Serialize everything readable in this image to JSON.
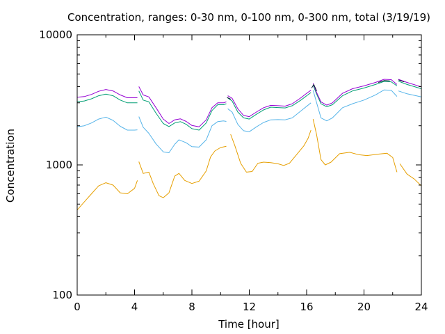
{
  "chart_data": {
    "type": "line",
    "title": "Concentration, ranges: 0-30 nm, 0-100 nm, 0-300 nm, total (3/19/19)",
    "xlabel": "Time [hour]",
    "ylabel": "Concentration",
    "xlim": [
      0,
      24
    ],
    "ylim": [
      100,
      10000
    ],
    "yscale": "log",
    "x_ticks": [
      0,
      4,
      8,
      12,
      16,
      20,
      24
    ],
    "x_tick_labels": [
      "0",
      "4",
      "8",
      "12",
      "16",
      "20",
      "24"
    ],
    "y_ticks": [
      100,
      1000,
      10000
    ],
    "y_tick_labels": [
      "100",
      "1000",
      "10000"
    ],
    "grid": false,
    "legend": "none",
    "series": [
      {
        "color": "#e69f00",
        "segments": [
          [
            [
              0.0,
              450
            ],
            [
              0.5,
              520
            ],
            [
              1.0,
              600
            ],
            [
              1.5,
              690
            ],
            [
              2.0,
              730
            ],
            [
              2.5,
              700
            ],
            [
              3.0,
              610
            ],
            [
              3.5,
              600
            ],
            [
              4.0,
              660
            ],
            [
              4.2,
              760
            ]
          ],
          [
            [
              4.3,
              1060
            ],
            [
              4.6,
              860
            ],
            [
              5.0,
              880
            ],
            [
              5.3,
              720
            ],
            [
              5.7,
              580
            ],
            [
              6.0,
              560
            ],
            [
              6.4,
              610
            ],
            [
              6.8,
              820
            ],
            [
              7.1,
              860
            ],
            [
              7.5,
              760
            ],
            [
              8.0,
              720
            ],
            [
              8.5,
              750
            ],
            [
              9.0,
              900
            ],
            [
              9.3,
              1150
            ],
            [
              9.6,
              1280
            ],
            [
              10.0,
              1360
            ],
            [
              10.4,
              1390
            ]
          ],
          [
            [
              10.7,
              1720
            ],
            [
              11.0,
              1400
            ],
            [
              11.4,
              1030
            ],
            [
              11.8,
              880
            ],
            [
              12.2,
              890
            ],
            [
              12.6,
              1030
            ],
            [
              13.0,
              1050
            ],
            [
              13.5,
              1040
            ],
            [
              14.0,
              1020
            ],
            [
              14.4,
              990
            ],
            [
              14.8,
              1030
            ],
            [
              15.3,
              1200
            ],
            [
              15.8,
              1400
            ],
            [
              16.1,
              1600
            ],
            [
              16.3,
              1850
            ]
          ],
          [
            [
              16.45,
              2250
            ],
            [
              16.7,
              1700
            ],
            [
              17.0,
              1100
            ],
            [
              17.3,
              1000
            ],
            [
              17.7,
              1050
            ],
            [
              18.3,
              1220
            ],
            [
              19.0,
              1250
            ],
            [
              19.6,
              1200
            ],
            [
              20.2,
              1180
            ],
            [
              21.0,
              1210
            ],
            [
              21.6,
              1230
            ],
            [
              22.0,
              1140
            ],
            [
              22.3,
              880
            ]
          ],
          [
            [
              22.5,
              1020
            ],
            [
              23.0,
              850
            ],
            [
              23.5,
              780
            ],
            [
              24.0,
              690
            ]
          ]
        ]
      },
      {
        "color": "#56b4e9",
        "segments": [
          [
            [
              0.0,
              1960
            ],
            [
              0.5,
              2000
            ],
            [
              1.0,
              2100
            ],
            [
              1.5,
              2250
            ],
            [
              2.0,
              2330
            ],
            [
              2.5,
              2200
            ],
            [
              3.0,
              1980
            ],
            [
              3.5,
              1850
            ],
            [
              4.0,
              1850
            ],
            [
              4.2,
              1860
            ]
          ],
          [
            [
              4.3,
              2350
            ],
            [
              4.6,
              1950
            ],
            [
              5.0,
              1750
            ],
            [
              5.5,
              1450
            ],
            [
              6.0,
              1260
            ],
            [
              6.4,
              1240
            ],
            [
              6.8,
              1440
            ],
            [
              7.1,
              1560
            ],
            [
              7.6,
              1480
            ],
            [
              8.0,
              1380
            ],
            [
              8.5,
              1370
            ],
            [
              9.0,
              1560
            ],
            [
              9.4,
              2000
            ],
            [
              9.8,
              2150
            ],
            [
              10.2,
              2180
            ],
            [
              10.4,
              2160
            ]
          ],
          [
            [
              10.5,
              2700
            ],
            [
              10.8,
              2550
            ],
            [
              11.2,
              2050
            ],
            [
              11.6,
              1830
            ],
            [
              12.0,
              1800
            ],
            [
              12.5,
              1960
            ],
            [
              13.0,
              2120
            ],
            [
              13.5,
              2220
            ],
            [
              14.0,
              2230
            ],
            [
              14.5,
              2220
            ],
            [
              15.0,
              2300
            ],
            [
              15.6,
              2600
            ],
            [
              16.0,
              2820
            ],
            [
              16.3,
              3000
            ]
          ],
          [
            [
              16.45,
              3750
            ],
            [
              16.7,
              3000
            ],
            [
              17.0,
              2300
            ],
            [
              17.4,
              2180
            ],
            [
              17.8,
              2300
            ],
            [
              18.5,
              2750
            ],
            [
              19.2,
              2950
            ],
            [
              20.0,
              3150
            ],
            [
              20.8,
              3450
            ],
            [
              21.4,
              3770
            ],
            [
              21.9,
              3750
            ],
            [
              22.3,
              3360
            ]
          ],
          [
            [
              22.4,
              3700
            ],
            [
              23.0,
              3520
            ],
            [
              24.0,
              3330
            ]
          ]
        ]
      },
      {
        "color": "#009e73",
        "segments": [
          [
            [
              0.0,
              3060
            ],
            [
              0.5,
              3100
            ],
            [
              1.0,
              3220
            ],
            [
              1.5,
              3400
            ],
            [
              2.0,
              3500
            ],
            [
              2.5,
              3400
            ],
            [
              3.0,
              3150
            ],
            [
              3.5,
              3000
            ],
            [
              4.0,
              3000
            ],
            [
              4.2,
              3000
            ]
          ],
          [
            [
              4.3,
              3700
            ],
            [
              4.6,
              3150
            ],
            [
              5.0,
              3050
            ],
            [
              5.5,
              2500
            ],
            [
              6.0,
              2080
            ],
            [
              6.4,
              1970
            ],
            [
              6.8,
              2100
            ],
            [
              7.2,
              2150
            ],
            [
              7.6,
              2050
            ],
            [
              8.0,
              1900
            ],
            [
              8.5,
              1850
            ],
            [
              9.0,
              2100
            ],
            [
              9.4,
              2620
            ],
            [
              9.8,
              2900
            ],
            [
              10.2,
              2900
            ],
            [
              10.4,
              2950
            ]
          ],
          [
            [
              10.5,
              3270
            ],
            [
              10.8,
              3100
            ],
            [
              11.2,
              2550
            ],
            [
              11.6,
              2300
            ],
            [
              12.0,
              2250
            ],
            [
              12.5,
              2450
            ],
            [
              13.0,
              2650
            ],
            [
              13.5,
              2780
            ],
            [
              14.0,
              2760
            ],
            [
              14.5,
              2740
            ],
            [
              15.0,
              2850
            ],
            [
              15.6,
              3150
            ],
            [
              16.0,
              3400
            ],
            [
              16.3,
              3600
            ]
          ],
          [
            [
              16.45,
              4100
            ],
            [
              16.7,
              3500
            ],
            [
              17.0,
              2950
            ],
            [
              17.4,
              2800
            ],
            [
              17.8,
              2900
            ],
            [
              18.5,
              3400
            ],
            [
              19.2,
              3700
            ],
            [
              20.0,
              3900
            ],
            [
              20.8,
              4150
            ],
            [
              21.4,
              4380
            ],
            [
              21.9,
              4350
            ],
            [
              22.3,
              4050
            ]
          ],
          [
            [
              22.4,
              4400
            ],
            [
              23.0,
              4150
            ],
            [
              24.0,
              3850
            ]
          ]
        ]
      },
      {
        "color": "#9400d3",
        "segments": [
          [
            [
              0.0,
              3310
            ],
            [
              0.5,
              3350
            ],
            [
              1.0,
              3480
            ],
            [
              1.5,
              3680
            ],
            [
              2.0,
              3800
            ],
            [
              2.5,
              3700
            ],
            [
              3.0,
              3450
            ],
            [
              3.5,
              3280
            ],
            [
              4.0,
              3280
            ],
            [
              4.2,
              3280
            ]
          ],
          [
            [
              4.3,
              4000
            ],
            [
              4.6,
              3450
            ],
            [
              5.0,
              3330
            ],
            [
              5.5,
              2750
            ],
            [
              6.0,
              2250
            ],
            [
              6.4,
              2080
            ],
            [
              6.8,
              2220
            ],
            [
              7.2,
              2260
            ],
            [
              7.6,
              2160
            ],
            [
              8.0,
              2010
            ],
            [
              8.5,
              1960
            ],
            [
              9.0,
              2220
            ],
            [
              9.4,
              2750
            ],
            [
              9.8,
              3000
            ],
            [
              10.2,
              3000
            ],
            [
              10.4,
              3050
            ]
          ],
          [
            [
              10.5,
              3400
            ],
            [
              10.8,
              3250
            ],
            [
              11.2,
              2700
            ],
            [
              11.6,
              2400
            ],
            [
              12.0,
              2350
            ],
            [
              12.5,
              2550
            ],
            [
              13.0,
              2750
            ],
            [
              13.5,
              2870
            ],
            [
              14.0,
              2850
            ],
            [
              14.5,
              2830
            ],
            [
              15.0,
              2950
            ],
            [
              15.6,
              3280
            ],
            [
              16.0,
              3550
            ],
            [
              16.3,
              3750
            ]
          ],
          [
            [
              16.45,
              4250
            ],
            [
              16.7,
              3600
            ],
            [
              17.0,
              3050
            ],
            [
              17.4,
              2880
            ],
            [
              17.8,
              3000
            ],
            [
              18.5,
              3550
            ],
            [
              19.2,
              3850
            ],
            [
              20.0,
              4050
            ],
            [
              20.8,
              4300
            ],
            [
              21.4,
              4550
            ],
            [
              21.9,
              4520
            ],
            [
              22.3,
              4150
            ]
          ],
          [
            [
              22.4,
              4550
            ],
            [
              23.0,
              4300
            ],
            [
              24.0,
              3980
            ]
          ]
        ]
      },
      {
        "color": "#0d1530",
        "segments": [
          [
            [
              10.45,
              3300
            ],
            [
              10.7,
              3200
            ]
          ],
          [
            [
              16.35,
              3900
            ],
            [
              16.5,
              4150
            ],
            [
              16.7,
              3700
            ]
          ],
          [
            [
              21.0,
              4300
            ],
            [
              21.4,
              4450
            ],
            [
              21.8,
              4420
            ]
          ],
          [
            [
              22.4,
              4500
            ],
            [
              22.8,
              4350
            ]
          ]
        ]
      }
    ]
  }
}
